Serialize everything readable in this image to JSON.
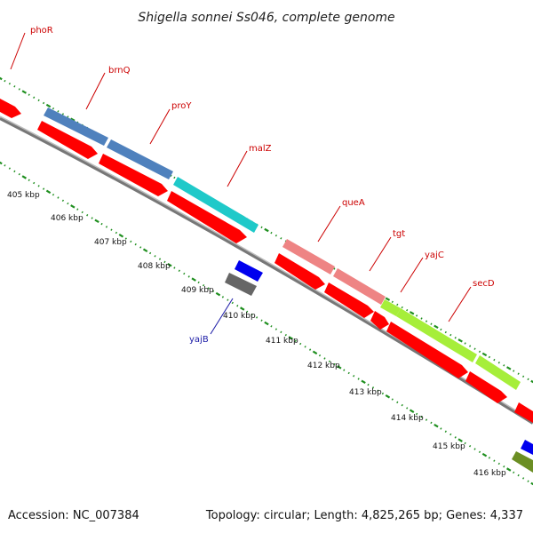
{
  "title": "Shigella sonnei Ss046, complete genome",
  "genes": [
    {
      "id": "phoR",
      "label": "phoR",
      "color": "#ff0000"
    },
    {
      "id": "brnQ",
      "label": "brnQ",
      "color": "#4f81bd"
    },
    {
      "id": "proY",
      "label": "proY",
      "color": "#4f81bd"
    },
    {
      "id": "malZ",
      "label": "malZ",
      "color": "#1fc9c9"
    },
    {
      "id": "queA",
      "label": "queA",
      "color": "#ee8484"
    },
    {
      "id": "tgt",
      "label": "tgt",
      "color": "#ee8484"
    },
    {
      "id": "yajC",
      "label": "yajC",
      "color": "#a6ee3a"
    },
    {
      "id": "secD",
      "label": "secD",
      "color": "#a6ee3a"
    },
    {
      "id": "yajB",
      "label": "yajB",
      "color": "#1a1aa6"
    }
  ],
  "kbp_labels": [
    "405 kbp",
    "406 kbp",
    "407 kbp",
    "408 kbp",
    "409 kbp",
    "410 kbp",
    "411 kbp",
    "412 kbp",
    "413 kbp",
    "414 kbp",
    "415 kbp",
    "416 kbp"
  ],
  "colors": {
    "cds": "#ff0000",
    "backbone": "#888888",
    "tick": "#1f8f1f",
    "rna": "#0000ee",
    "pseudo": "#666666",
    "olive": "#6b8e23"
  },
  "footer": {
    "accession": "Accession: NC_007384",
    "summary": "Topology: circular; Length: 4,825,265 bp; Genes: 4,337"
  }
}
